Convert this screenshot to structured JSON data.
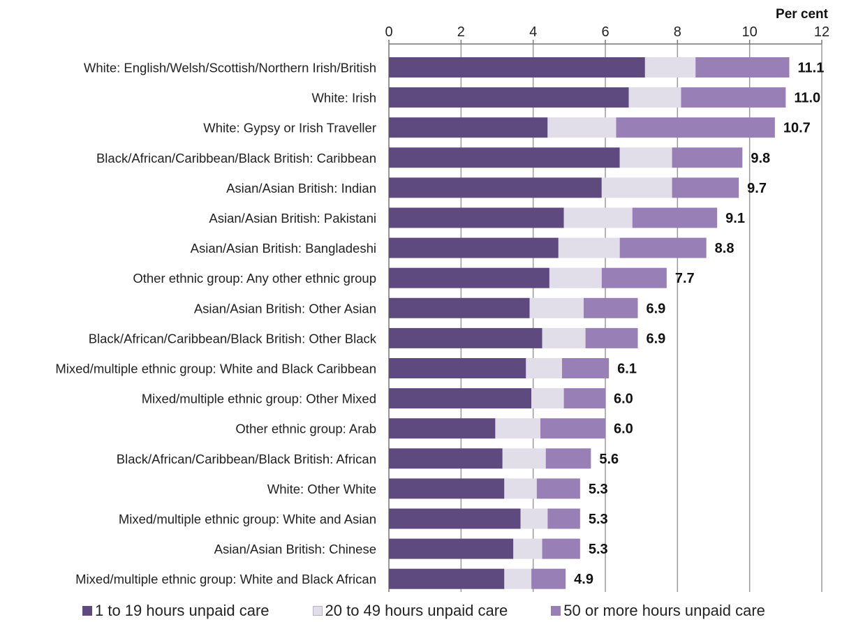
{
  "chart_data": {
    "type": "bar",
    "orientation": "horizontal",
    "stacked": true,
    "unit_label": "Per cent",
    "xlim": [
      0,
      12
    ],
    "x_ticks": [
      0,
      2,
      4,
      6,
      8,
      10,
      12
    ],
    "x_axis_position": "top",
    "grid": "vertical",
    "legend_position": "bottom",
    "categories": [
      "White: English/Welsh/Scottish/Northern Irish/British",
      "White: Irish",
      "White: Gypsy or Irish Traveller",
      "Black/African/Caribbean/Black British: Caribbean",
      "Asian/Asian British: Indian",
      "Asian/Asian British: Pakistani",
      "Asian/Asian British: Bangladeshi",
      "Other ethnic group: Any other ethnic group",
      "Asian/Asian British: Other Asian",
      "Black/African/Caribbean/Black British: Other Black",
      "Mixed/multiple ethnic group: White and Black Caribbean",
      "Mixed/multiple ethnic group: Other Mixed",
      "Other ethnic group: Arab",
      "Black/African/Caribbean/Black British: African",
      "White: Other White",
      "Mixed/multiple ethnic group: White and Asian",
      "Asian/Asian British: Chinese",
      "Mixed/multiple ethnic group: White and Black African"
    ],
    "series": [
      {
        "name": "1 to 19 hours unpaid care",
        "color": "#5e4a7e",
        "values": [
          7.1,
          6.65,
          4.4,
          6.4,
          5.9,
          4.85,
          4.7,
          4.45,
          3.9,
          4.25,
          3.8,
          3.95,
          2.95,
          3.15,
          3.2,
          3.65,
          3.45,
          3.2
        ]
      },
      {
        "name": "20 to 49 hours unpaid care",
        "color": "#e1dde9",
        "values": [
          1.4,
          1.45,
          1.9,
          1.45,
          1.95,
          1.9,
          1.7,
          1.45,
          1.5,
          1.2,
          1.0,
          0.9,
          1.25,
          1.2,
          0.9,
          0.75,
          0.8,
          0.75
        ]
      },
      {
        "name": "50 or more hours unpaid care",
        "color": "#9880b6",
        "values": [
          2.6,
          2.9,
          4.4,
          1.95,
          1.85,
          2.35,
          2.4,
          1.8,
          1.5,
          1.45,
          1.3,
          1.15,
          1.8,
          1.25,
          1.2,
          0.9,
          1.05,
          0.95
        ]
      }
    ],
    "totals": [
      "11.1",
      "11.0",
      "10.7",
      "9.8",
      "9.7",
      "9.1",
      "8.8",
      "7.7",
      "6.9",
      "6.9",
      "6.1",
      "6.0",
      "6.0",
      "5.6",
      "5.3",
      "5.3",
      "5.3",
      "4.9"
    ]
  }
}
